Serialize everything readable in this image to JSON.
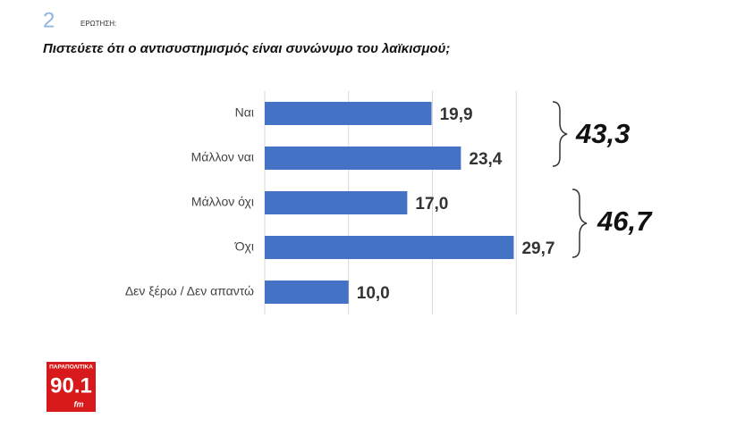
{
  "question_number": "2",
  "question_label": "ΕΡΩΤΗΣΗ:",
  "chart_data": {
    "type": "hbar",
    "title": "Πιστεύετε ότι ο αντισυστημισμός είναι συνώνυμο του λαϊκισμού;",
    "categories": [
      "Ναι",
      "Μάλλον ναι",
      "Μάλλον όχι",
      "Όχι",
      "Δεν ξέρω / Δεν απαντώ"
    ],
    "values": [
      19.9,
      23.4,
      17.0,
      29.7,
      10.0
    ],
    "value_labels": [
      "19,9",
      "23,4",
      "17,0",
      "29,7",
      "10,0"
    ],
    "color": "#4472c4",
    "xlim": [
      0,
      40
    ],
    "xticks": [
      0,
      10,
      20,
      30
    ],
    "grid": true,
    "annotations": [
      {
        "value": 43.3,
        "label": "43,3"
      },
      {
        "value": 46.7,
        "label": "46,7"
      }
    ]
  },
  "logo": {
    "top": "ΠΑΡΑΠΟΛΙΤΙΚΑ",
    "main": "90.1",
    "sub": "fm"
  }
}
